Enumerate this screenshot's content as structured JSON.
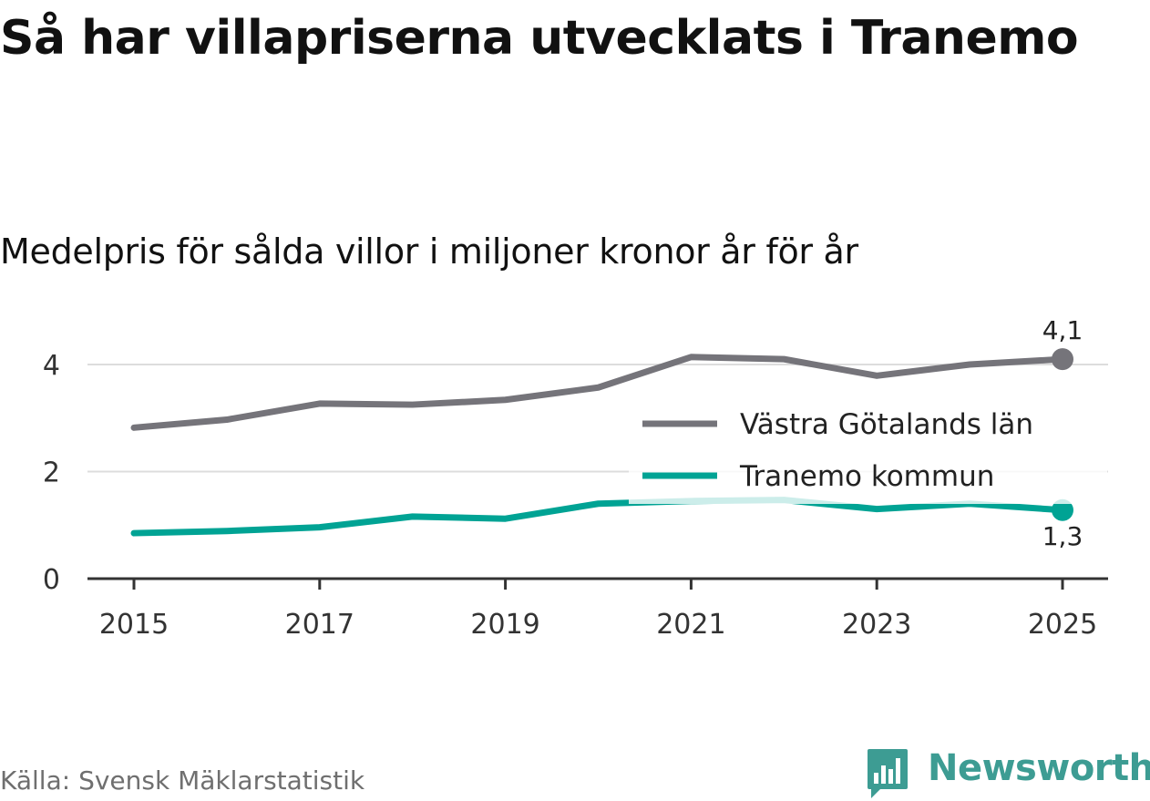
{
  "title": "Så har villapriserna utvecklats i Tranemo",
  "subtitle": "Medelpris för sålda villor i miljoner kronor år för år",
  "source": "Källa: Svensk Mäklarstatistik",
  "brand": "Newsworthy",
  "colors": {
    "vastra": "#75747a",
    "tranemo": "#00a394",
    "brand": "#3d9c93"
  },
  "chart_data": {
    "type": "line",
    "x": [
      2015,
      2016,
      2017,
      2018,
      2019,
      2020,
      2021,
      2022,
      2023,
      2024,
      2025
    ],
    "x_ticks": [
      "2015",
      "2017",
      "2019",
      "2021",
      "2023",
      "2025"
    ],
    "y_ticks": [
      "0",
      "2",
      "4"
    ],
    "ylim": [
      0,
      4.5
    ],
    "xlim": [
      2014.5,
      2025.5
    ],
    "grid": true,
    "legend_position": "right",
    "series": [
      {
        "name": "Västra Götalands län",
        "values": [
          2.82,
          2.97,
          3.27,
          3.25,
          3.34,
          3.57,
          4.14,
          4.1,
          3.79,
          4.0,
          4.1
        ],
        "end_label": "4,1"
      },
      {
        "name": "Tranemo kommun",
        "values": [
          0.85,
          0.89,
          0.96,
          1.16,
          1.12,
          1.4,
          1.45,
          1.47,
          1.3,
          1.4,
          1.28
        ],
        "end_label": "1,3"
      }
    ]
  }
}
